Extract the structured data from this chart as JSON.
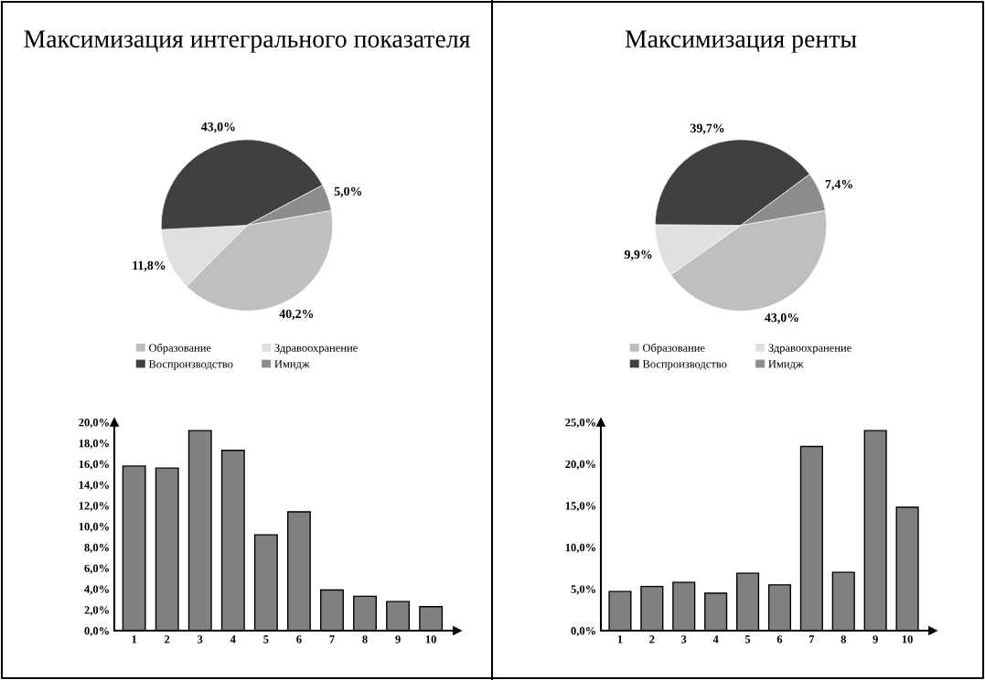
{
  "chart_data": [
    {
      "type": "pie",
      "title": "Максимизация интегрального показателя",
      "categories": [
        "Образование",
        "Здравоохранение",
        "Воспроизводство",
        "Имидж"
      ],
      "values": [
        40.2,
        11.8,
        43.0,
        5.0
      ],
      "value_labels": [
        "40,2%",
        "11,8%",
        "43,0%",
        "5,0%"
      ],
      "colors": [
        "#bfbfbf",
        "#e0e0e0",
        "#404040",
        "#8c8c8c"
      ],
      "legend": "bottom"
    },
    {
      "type": "bar",
      "categories": [
        "1",
        "2",
        "3",
        "4",
        "5",
        "6",
        "7",
        "8",
        "9",
        "10"
      ],
      "values": [
        15.8,
        15.6,
        19.2,
        17.3,
        9.2,
        11.4,
        3.9,
        3.3,
        2.8,
        2.3
      ],
      "color": "#808080",
      "ylim": [
        0,
        20
      ],
      "yticks": [
        {
          "value": 0,
          "label": "0,0%"
        },
        {
          "value": 2,
          "label": "2,0%"
        },
        {
          "value": 4,
          "label": "4,0%"
        },
        {
          "value": 6,
          "label": "6,0%"
        },
        {
          "value": 8,
          "label": "8,0%"
        },
        {
          "value": 10,
          "label": "10,0%"
        },
        {
          "value": 12,
          "label": "12,0%"
        },
        {
          "value": 14,
          "label": "14,0%"
        },
        {
          "value": 16,
          "label": "16,0%"
        },
        {
          "value": 18,
          "label": "18,0%"
        },
        {
          "value": 20,
          "label": "20,0%"
        }
      ],
      "grid": false
    },
    {
      "type": "pie",
      "title": "Максимизация ренты",
      "categories": [
        "Образование",
        "Здравоохранение",
        "Воспроизводство",
        "Имидж"
      ],
      "values": [
        43.0,
        9.9,
        39.7,
        7.4
      ],
      "value_labels": [
        "43,0%",
        "9,9%",
        "39,7%",
        "7,4%"
      ],
      "colors": [
        "#bfbfbf",
        "#e0e0e0",
        "#404040",
        "#8c8c8c"
      ],
      "legend": "bottom"
    },
    {
      "type": "bar",
      "categories": [
        "1",
        "2",
        "3",
        "4",
        "5",
        "6",
        "7",
        "8",
        "9",
        "10"
      ],
      "values": [
        4.7,
        5.3,
        5.8,
        4.5,
        6.9,
        5.5,
        22.1,
        7.0,
        24.0,
        14.8
      ],
      "color": "#808080",
      "ylim": [
        0,
        25
      ],
      "yticks": [
        {
          "value": 0,
          "label": "0,0%"
        },
        {
          "value": 5,
          "label": "5,0%"
        },
        {
          "value": 10,
          "label": "10,0%"
        },
        {
          "value": 15,
          "label": "15,0%"
        },
        {
          "value": 20,
          "label": "20,0%"
        },
        {
          "value": 25,
          "label": "25,0%"
        }
      ],
      "grid": false
    }
  ]
}
